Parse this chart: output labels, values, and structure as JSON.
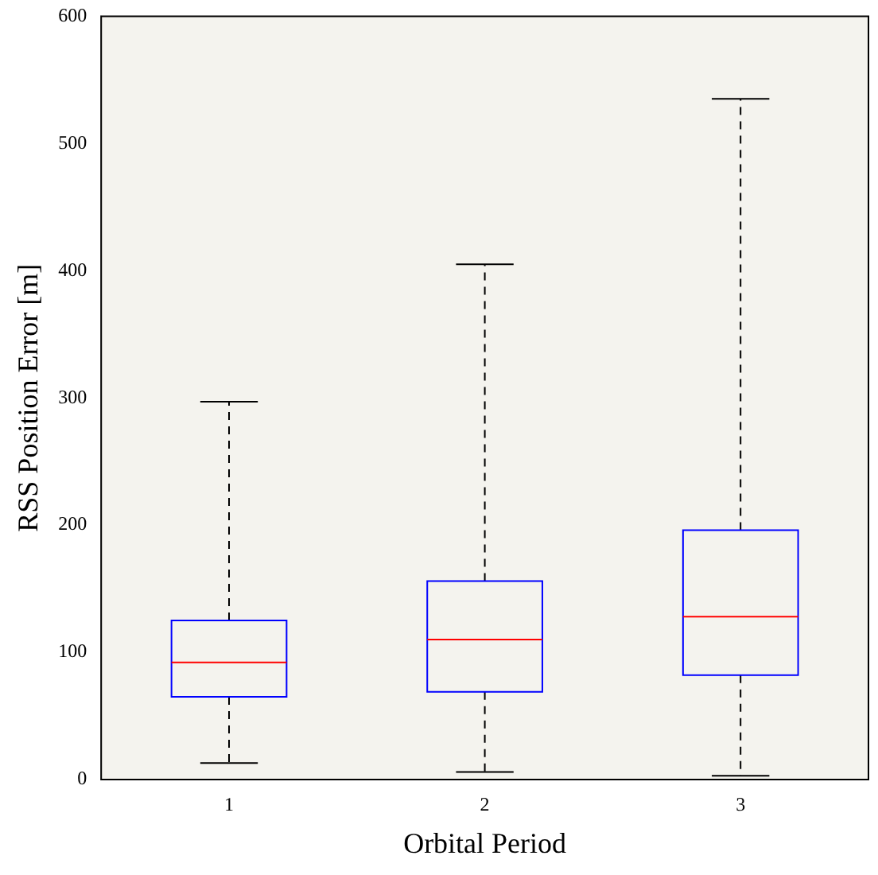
{
  "chart_data": {
    "type": "box",
    "xlabel": "Orbital Period",
    "ylabel": "RSS Position Error [m]",
    "categories": [
      "1",
      "2",
      "3"
    ],
    "ylim": [
      0,
      600
    ],
    "yticks": [
      0,
      100,
      200,
      300,
      400,
      500,
      600
    ],
    "grid": false,
    "series": [
      {
        "color": "#0000ff",
        "boxes": [
          {
            "low": 13,
            "q1": 65,
            "median": 92,
            "q3": 125,
            "high": 297
          },
          {
            "low": 6,
            "q1": 69,
            "median": 110,
            "q3": 156,
            "high": 405
          },
          {
            "low": 3,
            "q1": 82,
            "median": 128,
            "q3": 196,
            "high": 535
          }
        ]
      }
    ]
  }
}
